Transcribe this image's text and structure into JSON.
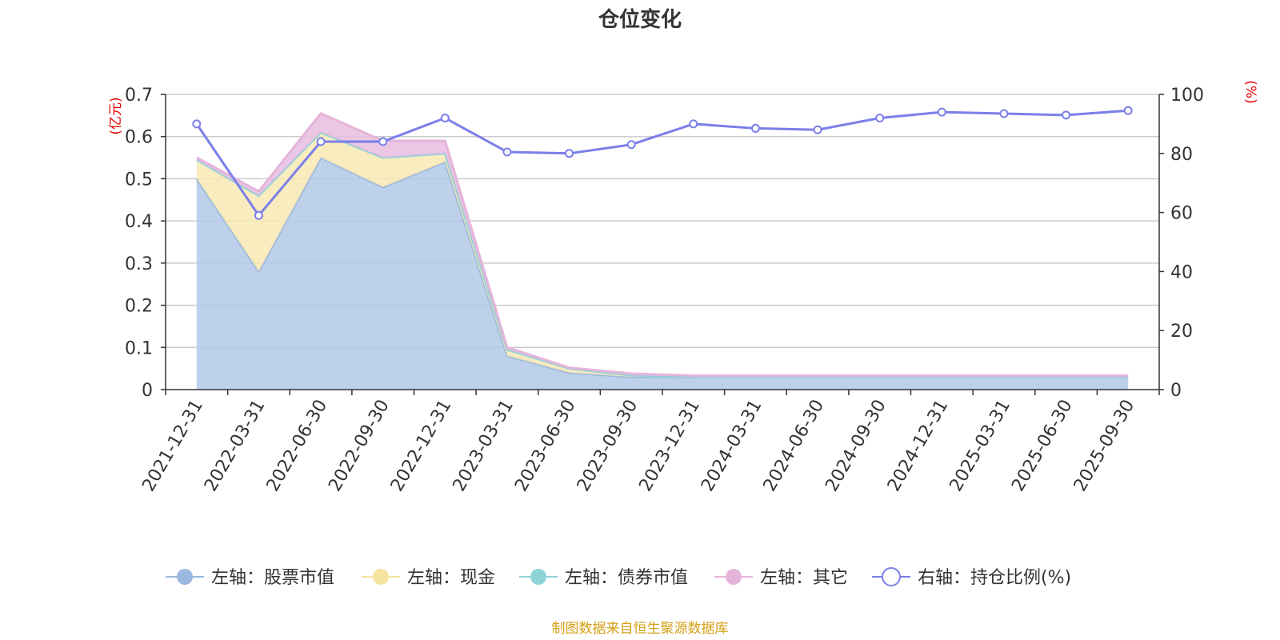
{
  "chart_data": {
    "type": "area",
    "title": "仓位变化",
    "categories": [
      "2021-12-31",
      "2022-03-31",
      "2022-06-30",
      "2022-09-30",
      "2022-12-31",
      "2023-03-31",
      "2023-06-30",
      "2023-09-30",
      "2023-12-31",
      "2024-03-31",
      "2024-06-30",
      "2024-09-30",
      "2024-12-31",
      "2025-03-31",
      "2025-06-30",
      "2025-09-30"
    ],
    "left_axis": {
      "unit": "(亿元)",
      "ylim": [
        0,
        0.7
      ],
      "ticks": [
        "0",
        "0.1",
        "0.2",
        "0.3",
        "0.4",
        "0.5",
        "0.6",
        "0.7"
      ]
    },
    "right_axis": {
      "unit": "(%)",
      "ylim": [
        0,
        100
      ],
      "ticks": [
        "0",
        "20",
        "40",
        "60",
        "80",
        "100"
      ]
    },
    "series": [
      {
        "name": "左轴：股票市值",
        "axis": "left",
        "stacked": true,
        "color": "#9bb8e0",
        "fill": "#b3c9e8",
        "values": [
          0.5,
          0.28,
          0.55,
          0.48,
          0.54,
          0.08,
          0.04,
          0.03,
          0.03,
          0.03,
          0.03,
          0.03,
          0.03,
          0.03,
          0.03,
          0.03
        ]
      },
      {
        "name": "左轴：现金",
        "axis": "left",
        "stacked": true,
        "color": "#f5e3a0",
        "fill": "#f8e9b4",
        "values": [
          0.045,
          0.18,
          0.06,
          0.07,
          0.02,
          0.015,
          0.01,
          0.004,
          0.001,
          0.001,
          0.001,
          0.001,
          0.001,
          0.001,
          0.001,
          0.001
        ]
      },
      {
        "name": "左轴：债券市值",
        "axis": "left",
        "stacked": true,
        "color": "#8fd3d9",
        "fill": "#a9dde2",
        "values": [
          0,
          0,
          0,
          0,
          0,
          0,
          0,
          0,
          0,
          0,
          0,
          0,
          0,
          0,
          0,
          0
        ]
      },
      {
        "name": "左轴：其它",
        "axis": "left",
        "stacked": true,
        "color": "#e5b4da",
        "fill": "#e8bde0",
        "values": [
          0.005,
          0.01,
          0.045,
          0.04,
          0.03,
          0.005,
          0.002,
          0.004,
          0.002,
          0.002,
          0.002,
          0.002,
          0.002,
          0.002,
          0.002,
          0.002
        ]
      },
      {
        "name": "右轴：持仓比例(%)",
        "axis": "right",
        "stacked": false,
        "color": "#7b7fe8",
        "values": [
          90,
          59,
          84,
          84,
          92,
          80.5,
          80,
          83,
          90,
          88.5,
          88,
          92,
          94,
          93.5,
          93,
          94.5
        ]
      }
    ],
    "grid": true,
    "legend_position": "bottom"
  },
  "footer": {
    "source": "制图数据来自恒生聚源数据库"
  }
}
